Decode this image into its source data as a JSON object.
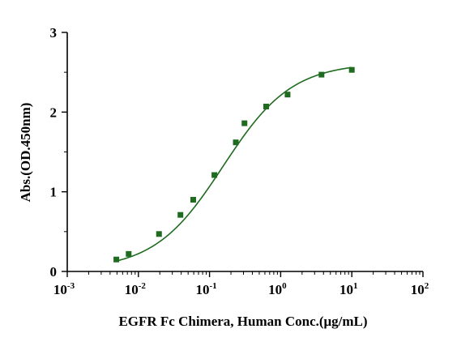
{
  "chart_data": {
    "type": "scatter",
    "xlabel": "EGFR Fc Chimera, Human Conc.(μg/mL)",
    "ylabel": "Abs.(OD.450nm)",
    "x_scale": "log",
    "xlim": [
      0.001,
      100
    ],
    "ylim": [
      0,
      3
    ],
    "x_ticks": [
      {
        "base": "10",
        "exp": "-3",
        "value": 0.001
      },
      {
        "base": "10",
        "exp": "-2",
        "value": 0.01
      },
      {
        "base": "10",
        "exp": "-1",
        "value": 0.1
      },
      {
        "base": "10",
        "exp": "0",
        "value": 1
      },
      {
        "base": "10",
        "exp": "1",
        "value": 10
      },
      {
        "base": "10",
        "exp": "2",
        "value": 100
      }
    ],
    "y_ticks": [
      "0",
      "1",
      "2",
      "3"
    ],
    "grid": false,
    "legend": "none",
    "color": "#1f6b1f",
    "series": [
      {
        "x": [
          0.0049,
          0.0073,
          0.0195,
          0.039,
          0.059,
          0.117,
          0.234,
          0.31,
          0.625,
          1.25,
          3.75,
          10
        ],
        "y": [
          0.15,
          0.22,
          0.47,
          0.71,
          0.9,
          1.21,
          1.62,
          1.86,
          2.07,
          2.22,
          2.47,
          2.53
        ]
      }
    ],
    "fit": {
      "bottom": 0.02,
      "top": 2.62,
      "ec50": 0.155,
      "hill": 0.9
    }
  }
}
